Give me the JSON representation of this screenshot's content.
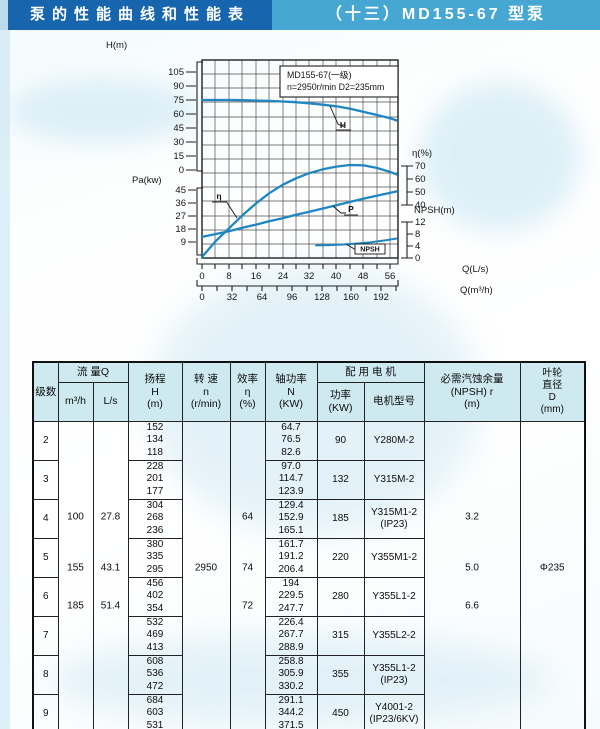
{
  "titlebar": {
    "left": "泵的性能曲线和性能表",
    "right": "（十三）MD155-67 型泵",
    "left_bg": "#1766ad",
    "right_bg": "#47a7d3"
  },
  "chart": {
    "title_line1": "MD155-67(一级)",
    "title_line2": "n=2950r/min  D2=235mm",
    "h_axis": {
      "label": "H(m)",
      "ticks": [
        "105",
        "90",
        "75",
        "60",
        "45",
        "30",
        "15",
        "0"
      ]
    },
    "pa_axis": {
      "label": "Pa(kw)",
      "ticks": [
        "45",
        "36",
        "27",
        "18",
        "9"
      ]
    },
    "eta_axis": {
      "label": "η(%)",
      "ticks": [
        "70",
        "60",
        "50",
        "40"
      ]
    },
    "npsh_axis": {
      "label": "NPSH(m)",
      "ticks": [
        "12",
        "8",
        "4",
        "0"
      ]
    },
    "q_ls_axis": {
      "label": "Q(L/s)",
      "ticks": [
        "0",
        "8",
        "16",
        "24",
        "32",
        "40",
        "48",
        "56"
      ]
    },
    "q_m3h_axis": {
      "label": "Q(m³/h)",
      "ticks": [
        "0",
        "32",
        "64",
        "96",
        "128",
        "160",
        "192"
      ]
    },
    "curve_labels": {
      "h": "H",
      "eta": "η",
      "p": "P",
      "npsh": "NPSH"
    }
  },
  "chart_data": {
    "type": "line",
    "title": "MD155-67(一级) n=2950r/min D2=235mm",
    "xlabel_primary": "Q(L/s)",
    "xlabel_secondary": "Q(m³/h)",
    "x_range_ls": [
      0,
      58
    ],
    "grid": true,
    "axes": {
      "H_m": {
        "range": [
          0,
          105
        ],
        "tick_step": 15
      },
      "Pa_kw": {
        "range": [
          9,
          45
        ],
        "tick_step": 9
      },
      "eta_pct": {
        "range": [
          40,
          70
        ],
        "tick_step": 10
      },
      "NPSH_m": {
        "range": [
          0,
          12
        ],
        "tick_step": 4
      },
      "Q_ls": {
        "ticks": [
          0,
          8,
          16,
          24,
          32,
          40,
          48,
          56
        ]
      },
      "Q_m3h": {
        "ticks": [
          0,
          32,
          64,
          96,
          128,
          160,
          192
        ]
      }
    },
    "series": [
      {
        "id": "H",
        "name": "H",
        "axis": "H_m",
        "scale": "H",
        "unit": "m",
        "x": [
          0,
          4,
          8,
          12,
          16,
          20,
          24,
          28,
          32,
          36,
          40,
          44,
          48,
          52,
          56,
          58
        ],
        "values": [
          75,
          75,
          75,
          74.8,
          74.5,
          74,
          73.4,
          72.6,
          71.5,
          70,
          68.2,
          65.8,
          62.5,
          59,
          55.5,
          53
        ]
      },
      {
        "id": "P",
        "name": "P",
        "axis": "Pa_kw",
        "scale": "Pa",
        "unit": "kw",
        "x": [
          0,
          4,
          8,
          12,
          16,
          20,
          24,
          28,
          32,
          36,
          40,
          44,
          48,
          52,
          56,
          58
        ],
        "values": [
          12.5,
          14.5,
          16.5,
          18.8,
          21,
          23.3,
          25.5,
          27.8,
          30,
          32.2,
          34.5,
          36.7,
          39,
          41,
          43,
          44
        ]
      },
      {
        "id": "eta",
        "name": "η",
        "axis": "eta_pct",
        "scale": "eta",
        "unit": "%",
        "x": [
          0,
          2,
          4,
          8,
          12,
          16,
          20,
          24,
          28,
          32,
          36,
          40,
          44,
          48,
          52,
          56,
          58
        ],
        "values": [
          0,
          6,
          12,
          22,
          32,
          41,
          49,
          55.5,
          60.5,
          64.5,
          67.5,
          69.5,
          70.8,
          70.5,
          68.5,
          65.5,
          63.5
        ]
      },
      {
        "id": "NPSH",
        "name": "NPSH",
        "axis": "NPSH_m",
        "scale": "NPSH",
        "unit": "m",
        "x": [
          34,
          38,
          42,
          46,
          50,
          54,
          58
        ],
        "values": [
          4.2,
          4.3,
          4.5,
          4.8,
          5.2,
          5.8,
          6.5
        ]
      }
    ]
  },
  "table": {
    "headers": {
      "stage": "级数",
      "flow_group": "流 量Q",
      "flow_m3h": "m³/h",
      "flow_ls": "L/s",
      "head_l1": "扬程",
      "head_l2": "H",
      "head_l3": "(m)",
      "speed_l1": "转 速",
      "speed_l2": "n",
      "speed_l3": "(r/min)",
      "eff_l1": "效率",
      "eff_l2": "η",
      "eff_l3": "(%)",
      "shaft_l1": "轴功率",
      "shaft_l2": "N",
      "shaft_l3": "(KW)",
      "motor_group": "配 用 电 机",
      "motor_power_l1": "功率",
      "motor_power_l2": "(KW)",
      "motor_model": "电机型号",
      "npsh_l1": "必需汽蚀余量",
      "npsh_l2": "(NPSH) r",
      "npsh_l3": "(m)",
      "imp_l1": "叶轮",
      "imp_l2": "直径",
      "imp_l3": "D",
      "imp_l4": "(mm)"
    },
    "flow_m3h": [
      "100",
      "155",
      "185"
    ],
    "flow_ls": [
      "27.8",
      "43.1",
      "51.4"
    ],
    "speed": "2950",
    "efficiency": [
      "64",
      "74",
      "72"
    ],
    "npsh_r": [
      "3.2",
      "5.0",
      "6.6"
    ],
    "impeller": "Φ235",
    "rows": [
      {
        "stage": "2",
        "h": [
          "152",
          "134",
          "118"
        ],
        "n": [
          "64.7",
          "76.5",
          "82.6"
        ],
        "power": "90",
        "motor1": "Y280M-2",
        "motor2": ""
      },
      {
        "stage": "3",
        "h": [
          "228",
          "201",
          "177"
        ],
        "n": [
          "97.0",
          "114.7",
          "123.9"
        ],
        "power": "132",
        "motor1": "Y315M-2",
        "motor2": ""
      },
      {
        "stage": "4",
        "h": [
          "304",
          "268",
          "236"
        ],
        "n": [
          "129.4",
          "152.9",
          "165.1"
        ],
        "power": "185",
        "motor1": "Y315M1-2",
        "motor2": "(IP23)"
      },
      {
        "stage": "5",
        "h": [
          "380",
          "335",
          "295"
        ],
        "n": [
          "161.7",
          "191.2",
          "206.4"
        ],
        "power": "220",
        "motor1": "Y355M1-2",
        "motor2": ""
      },
      {
        "stage": "6",
        "h": [
          "456",
          "402",
          "354"
        ],
        "n": [
          "194",
          "229.5",
          "247.7"
        ],
        "power": "280",
        "motor1": "Y355L1-2",
        "motor2": ""
      },
      {
        "stage": "7",
        "h": [
          "532",
          "469",
          "413"
        ],
        "n": [
          "226.4",
          "267.7",
          "288.9"
        ],
        "power": "315",
        "motor1": "Y355L2-2",
        "motor2": ""
      },
      {
        "stage": "8",
        "h": [
          "608",
          "536",
          "472"
        ],
        "n": [
          "258.8",
          "305.9",
          "330.2"
        ],
        "power": "355",
        "motor1": "Y355L1-2",
        "motor2": "(IP23)"
      },
      {
        "stage": "9",
        "h": [
          "684",
          "603",
          "531"
        ],
        "n": [
          "291.1",
          "344.2",
          "371.5"
        ],
        "power": "450",
        "motor1": "Y4001-2",
        "motor2": "(IP23/6KV)"
      }
    ]
  }
}
